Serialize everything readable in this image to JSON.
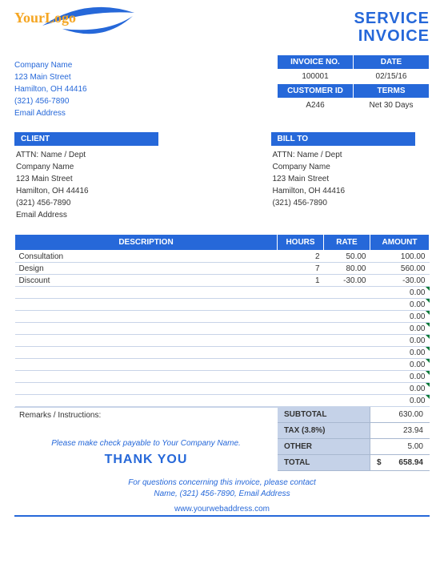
{
  "colors": {
    "primary": "#2668d9",
    "logo_accent": "#f5a623",
    "row_border": "#c8d4e8",
    "totals_bg": "#c5d2e8",
    "triangle": "#0a7a3a",
    "background": "#ffffff"
  },
  "logo": {
    "line1": "Your",
    "line2": "Logo"
  },
  "title": {
    "line1": "SERVICE",
    "line2": "INVOICE"
  },
  "company": {
    "name": "Company Name",
    "street": "123 Main Street",
    "citystate": "Hamilton, OH  44416",
    "phone": "(321) 456-7890",
    "email": "Email Address"
  },
  "meta": {
    "headers": {
      "invoice_no": "INVOICE NO.",
      "date": "DATE",
      "customer_id": "CUSTOMER ID",
      "terms": "TERMS"
    },
    "values": {
      "invoice_no": "100001",
      "date": "02/15/16",
      "customer_id": "A246",
      "terms": "Net 30 Days"
    }
  },
  "sections": {
    "client": "CLIENT",
    "bill_to": "BILL TO"
  },
  "client": {
    "attn": "ATTN: Name / Dept",
    "name": "Company Name",
    "street": "123 Main Street",
    "citystate": "Hamilton, OH  44416",
    "phone": "(321) 456-7890",
    "email": "Email Address"
  },
  "bill_to": {
    "attn": "ATTN: Name / Dept",
    "name": "Company Name",
    "street": "123 Main Street",
    "citystate": "Hamilton, OH  44416",
    "phone": "(321) 456-7890"
  },
  "items": {
    "headers": {
      "desc": "DESCRIPTION",
      "hours": "HOURS",
      "rate": "RATE",
      "amount": "AMOUNT"
    },
    "rows": [
      {
        "desc": "Consultation",
        "hours": "2",
        "rate": "50.00",
        "amount": "100.00"
      },
      {
        "desc": "Design",
        "hours": "7",
        "rate": "80.00",
        "amount": "560.00"
      },
      {
        "desc": "Discount",
        "hours": "1",
        "rate": "-30.00",
        "amount": "-30.00"
      },
      {
        "desc": "",
        "hours": "",
        "rate": "",
        "amount": "0.00"
      },
      {
        "desc": "",
        "hours": "",
        "rate": "",
        "amount": "0.00"
      },
      {
        "desc": "",
        "hours": "",
        "rate": "",
        "amount": "0.00"
      },
      {
        "desc": "",
        "hours": "",
        "rate": "",
        "amount": "0.00"
      },
      {
        "desc": "",
        "hours": "",
        "rate": "",
        "amount": "0.00"
      },
      {
        "desc": "",
        "hours": "",
        "rate": "",
        "amount": "0.00"
      },
      {
        "desc": "",
        "hours": "",
        "rate": "",
        "amount": "0.00"
      },
      {
        "desc": "",
        "hours": "",
        "rate": "",
        "amount": "0.00"
      },
      {
        "desc": "",
        "hours": "",
        "rate": "",
        "amount": "0.00"
      },
      {
        "desc": "",
        "hours": "",
        "rate": "",
        "amount": "0.00"
      }
    ],
    "blank_row_count": 10
  },
  "remarks": {
    "label": "Remarks / Instructions:",
    "payable": "Please make check payable to Your Company Name.",
    "thanks": "THANK YOU"
  },
  "totals": {
    "rows": [
      {
        "label": "SUBTOTAL",
        "value": "630.00"
      },
      {
        "label": "TAX (3.8%)",
        "value": "23.94"
      },
      {
        "label": "OTHER",
        "value": "5.00"
      },
      {
        "label": "TOTAL",
        "value": "658.94",
        "currency": "$"
      }
    ]
  },
  "footer": {
    "line1": "For questions concerning this invoice, please contact",
    "line2": "Name, (321) 456-7890, Email Address",
    "url": "www.yourwebaddress.com"
  }
}
